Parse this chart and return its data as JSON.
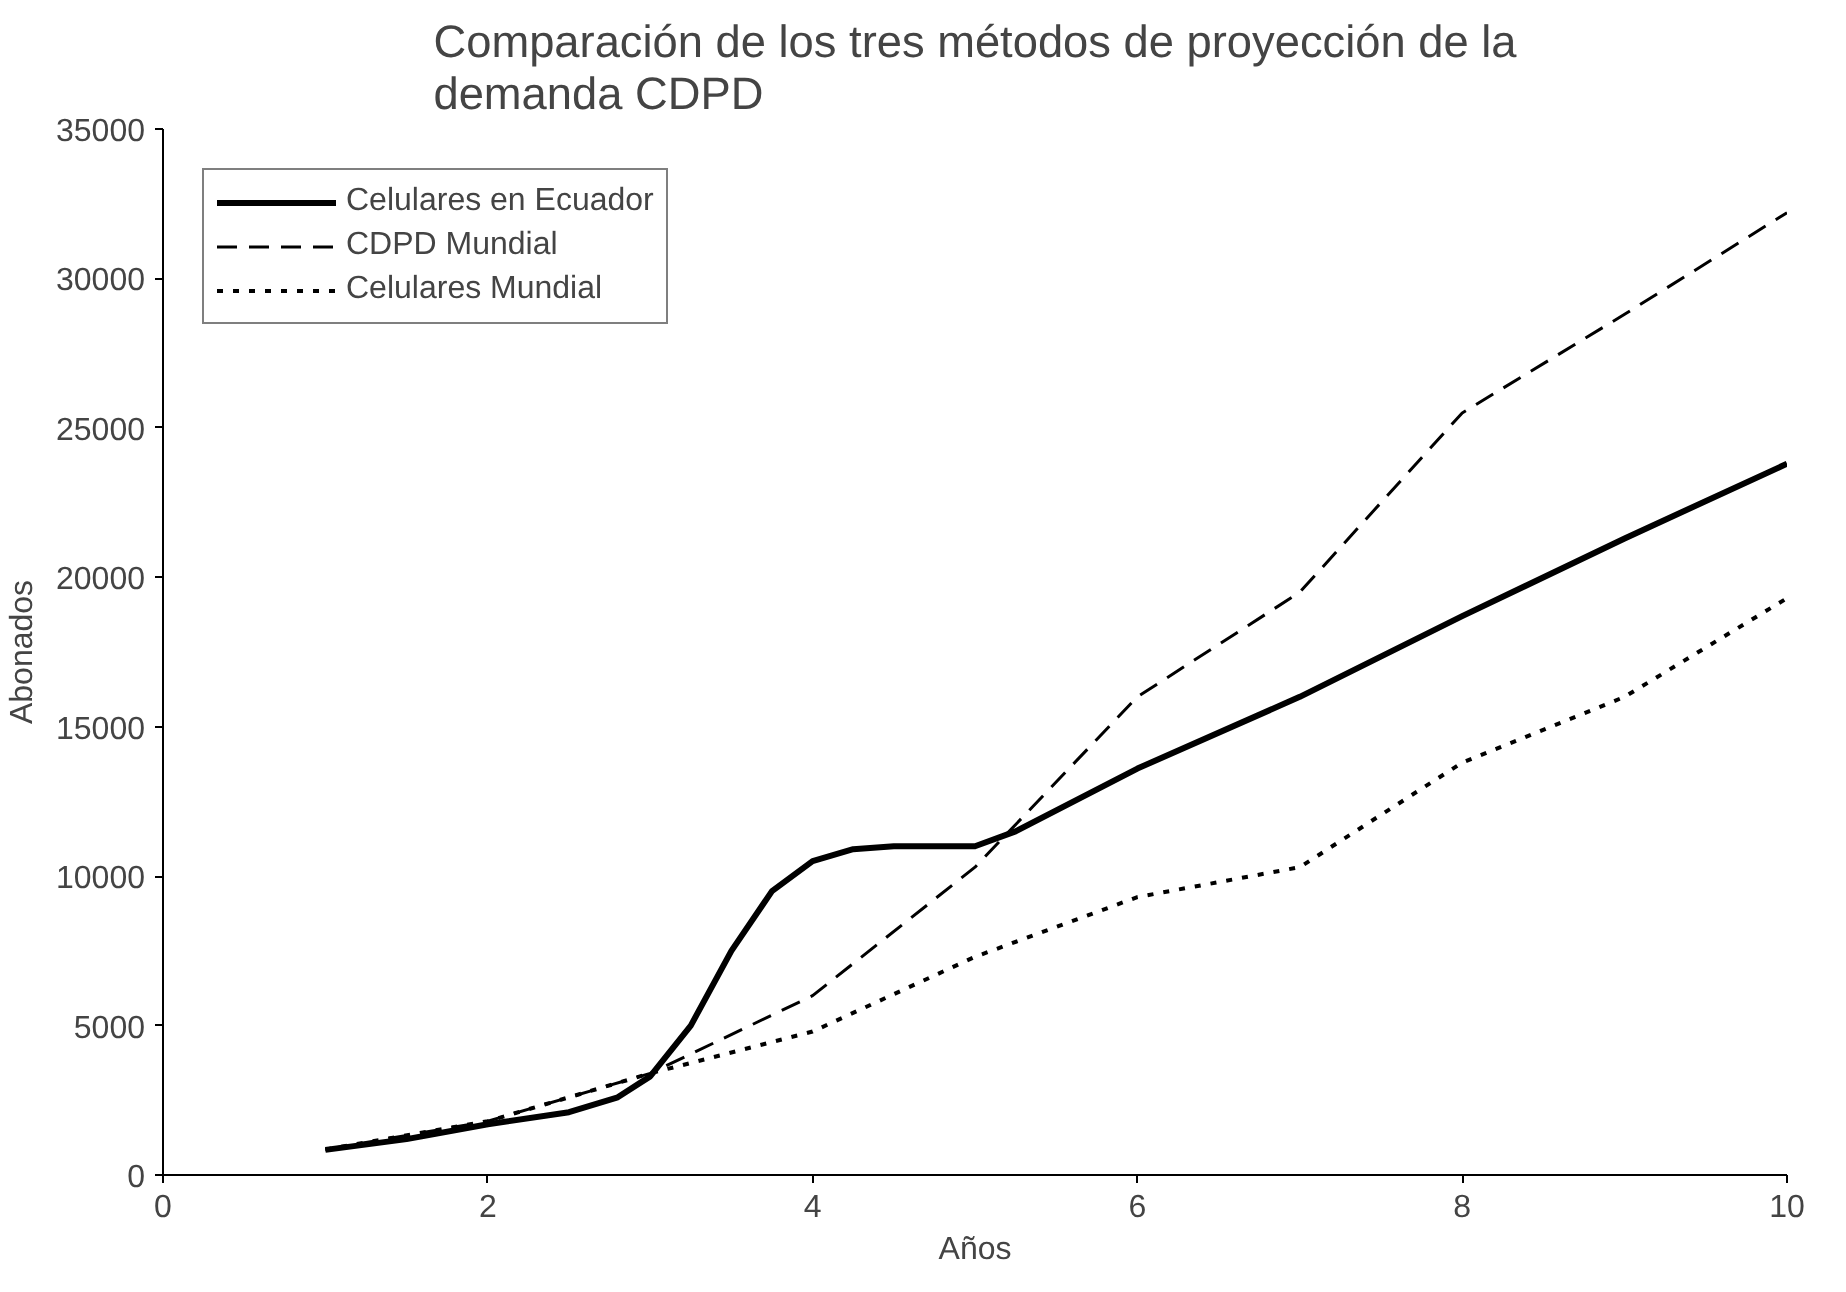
{
  "chart_data": {
    "type": "line",
    "title": "Comparación de los tres métodos de proyección de la\ndemanda CDPD",
    "xlabel": "Años",
    "ylabel": "Abonados",
    "xlim": [
      0,
      10
    ],
    "xticks": [
      0,
      2,
      4,
      6,
      8,
      10
    ],
    "ylim": [
      0,
      35000
    ],
    "yticks": [
      0,
      5000,
      10000,
      15000,
      20000,
      25000,
      30000,
      35000
    ],
    "grid": false,
    "legend": "top left",
    "marker": "none",
    "series": [
      {
        "name": "Celulares en Ecuador",
        "color": "#000000",
        "line_style": "solid",
        "x": [
          1,
          1.5,
          2,
          2.5,
          2.8,
          3,
          3.25,
          3.5,
          3.75,
          4,
          4.25,
          4.5,
          5,
          5.25,
          6,
          7,
          8,
          9,
          10
        ],
        "values": [
          840,
          1200,
          1700,
          2100,
          2600,
          3300,
          5000,
          7500,
          9500,
          10500,
          10900,
          11000,
          11000,
          11500,
          13600,
          16000,
          18700,
          21300,
          23800
        ]
      },
      {
        "name": "CDPD Mundial",
        "color": "#000000",
        "line_style": "dashed",
        "x": [
          1,
          2,
          3,
          4,
          5,
          6,
          7,
          8,
          9,
          10
        ],
        "values": [
          850,
          1800,
          3400,
          6000,
          10300,
          16000,
          19500,
          25500,
          28800,
          32200
        ]
      },
      {
        "name": "Celulares Mundial",
        "color": "#000000",
        "line_style": "dotted",
        "x": [
          1,
          2,
          3,
          4,
          5,
          6,
          7,
          8,
          9,
          10
        ],
        "values": [
          850,
          1800,
          3400,
          4800,
          7300,
          9300,
          10300,
          13800,
          16000,
          19300
        ]
      }
    ]
  }
}
